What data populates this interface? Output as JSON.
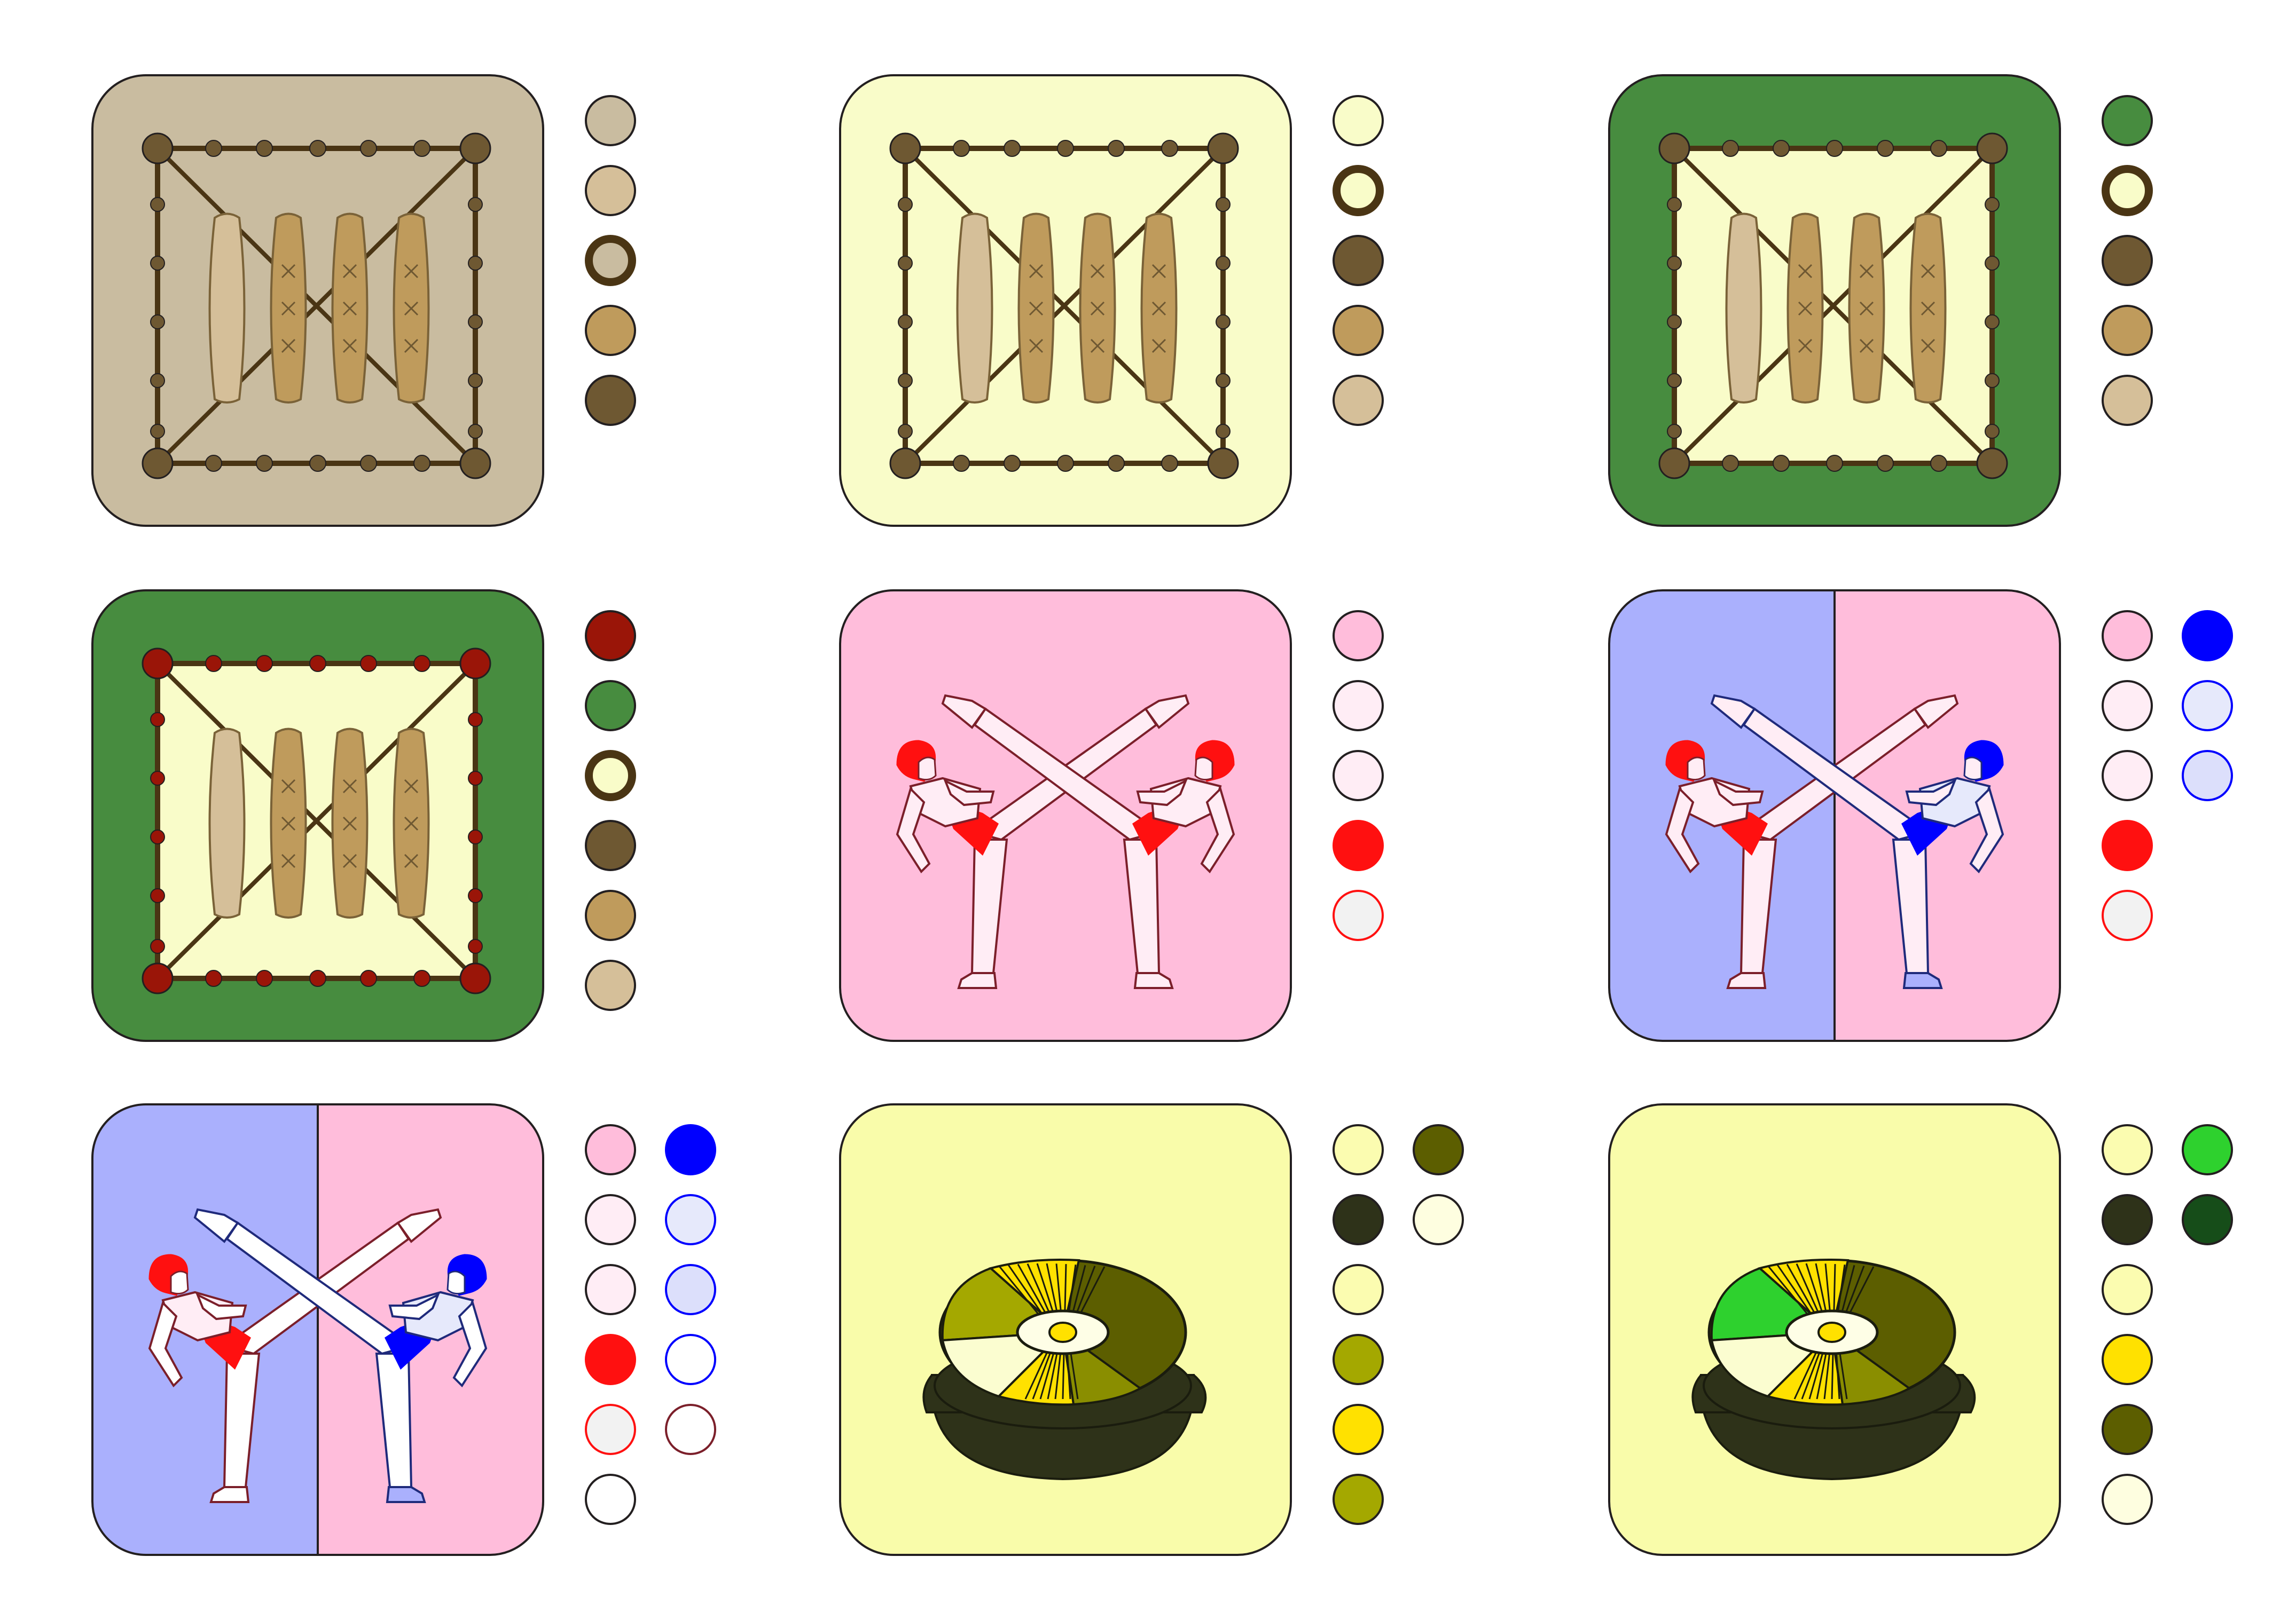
{
  "icons": [
    {
      "name": "mat-board-icon",
      "bg": "#c9bca0",
      "panel": "#c9bca0",
      "frame": "#4a3514",
      "node": "#6e5832",
      "pad_light": "#d5bf99",
      "pad": "#bf9b5c",
      "pad_x": "#6e5832",
      "palette": [
        [
          {
            "color": "#c9bca0"
          },
          {
            "color": "#d5bf99"
          },
          {
            "color": "#c9bca0",
            "ring": "#4a3514"
          },
          {
            "color": "#bf9b5c"
          },
          {
            "color": "#6e5832"
          }
        ]
      ]
    },
    {
      "name": "mat-board-icon",
      "bg": "#f9fcc9",
      "panel": "#f9fcc9",
      "frame": "#4a3514",
      "node": "#6e5832",
      "pad_light": "#d5bf99",
      "pad": "#bf9b5c",
      "pad_x": "#6e5832",
      "palette": [
        [
          {
            "color": "#f9fcc9"
          },
          {
            "color": "#f9fcc9",
            "ring": "#4a3514"
          },
          {
            "color": "#6e5832"
          },
          {
            "color": "#bf9b5c"
          },
          {
            "color": "#d5bf99"
          }
        ]
      ]
    },
    {
      "name": "mat-board-icon",
      "bg": "#478c3f",
      "panel": "#f9fcc9",
      "frame": "#4a3514",
      "node": "#6e5832",
      "pad_light": "#d5bf99",
      "pad": "#bf9b5c",
      "pad_x": "#6e5832",
      "palette": [
        [
          {
            "color": "#478c3f"
          },
          {
            "color": "#f9fcc9",
            "ring": "#4a3514"
          },
          {
            "color": "#6e5832"
          },
          {
            "color": "#bf9b5c"
          },
          {
            "color": "#d5bf99"
          }
        ]
      ]
    },
    {
      "name": "mat-board-icon",
      "bg": "#478c3f",
      "panel": "#f9fcc9",
      "frame": "#4a3514",
      "node": "#9a1508",
      "pad_light": "#d5bf99",
      "pad": "#bf9b5c",
      "pad_x": "#6e5832",
      "palette": [
        [
          {
            "color": "#9a1508"
          },
          {
            "color": "#478c3f"
          },
          {
            "color": "#f9fcc9",
            "ring": "#4a3514"
          },
          {
            "color": "#6e5832"
          },
          {
            "color": "#bf9b5c"
          },
          {
            "color": "#d5bf99"
          }
        ]
      ]
    },
    {
      "name": "kick-fighters-icon",
      "bg_left": "#ffbddb",
      "bg_right": "#ffbddb",
      "split": false,
      "left_accent": "#ff1010",
      "right_accent": "#ff1010",
      "skin": "#ffedf5",
      "left_shirt": "#ffedf5",
      "right_shirt": "#ffedf5",
      "left_foot": "#ffedf5",
      "right_foot": "#ffedf5",
      "left_outline": "#7b1f2a",
      "right_outline": "#7b1f2a",
      "palette": [
        [
          {
            "color": "#ffbddb"
          },
          {
            "color": "#ffedf5"
          },
          {
            "color": "#ffedf5"
          },
          {
            "color": "#ff1010",
            "stroke": "#ff1010"
          },
          {
            "color": "#f2f2f2",
            "stroke": "#ff1010"
          }
        ]
      ]
    },
    {
      "name": "kick-fighters-icon",
      "bg_left": "#aab0fd",
      "bg_right": "#ffbddb",
      "split": true,
      "left_accent": "#ff1010",
      "right_accent": "#0000ff",
      "skin": "#ffedf5",
      "left_shirt": "#ffedf5",
      "right_shirt": "#e6e9fb",
      "left_foot": "#ffedf5",
      "right_foot": "#aab0fd",
      "left_outline": "#7b1f2a",
      "right_outline": "#1f2a7b",
      "palette": [
        [
          {
            "color": "#ffbddb"
          },
          {
            "color": "#ffedf5"
          },
          {
            "color": "#ffedf5"
          },
          {
            "color": "#ff1010",
            "stroke": "#ff1010"
          },
          {
            "color": "#f2f2f2",
            "stroke": "#ff1010"
          }
        ],
        [
          {
            "color": "#0000ff",
            "stroke": "#0000ff"
          },
          {
            "color": "#e6e9fb",
            "stroke": "#0000ff"
          },
          {
            "color": "#dcdffb",
            "stroke": "#0000ff"
          }
        ]
      ]
    },
    {
      "name": "kick-fighters-icon",
      "bg_left": "#aab0fd",
      "bg_right": "#ffbddb",
      "split": true,
      "left_accent": "#ff1010",
      "right_accent": "#0000ff",
      "skin": "#ffffff",
      "left_shirt": "#ffedf5",
      "right_shirt": "#e6e9fb",
      "left_foot": "#ffffff",
      "right_foot": "#aab0fd",
      "left_outline": "#7b1f2a",
      "right_outline": "#1f2a7b",
      "palette": [
        [
          {
            "color": "#ffbddb"
          },
          {
            "color": "#ffedf5"
          },
          {
            "color": "#ffedf5"
          },
          {
            "color": "#ff1010",
            "stroke": "#ff1010"
          },
          {
            "color": "#f2f2f2",
            "stroke": "#ff1010"
          },
          {
            "color": "#ffffff"
          }
        ],
        [
          {
            "color": "#0000ff",
            "stroke": "#0000ff"
          },
          {
            "color": "#e6e9fb",
            "stroke": "#0000ff"
          },
          {
            "color": "#dcdffb",
            "stroke": "#0000ff"
          },
          {
            "color": "#ffffff",
            "stroke": "#0000ff"
          },
          {
            "color": "#ffffff",
            "stroke": "#7b1f2a"
          }
        ]
      ]
    },
    {
      "name": "bibimbap-bowl-icon",
      "bg": "#f9fcaa",
      "bowl": "#2e3219",
      "rim": "#2e3219",
      "seg_a": "#5c5e00",
      "seg_b": "#a4a800",
      "seg_c": "#8a8e00",
      "seg_d": "#fbfdd0",
      "seg_e": "#ffe100",
      "egg": "#fefee6",
      "yolk": "#ffe100",
      "palette": [
        [
          {
            "color": "#fbfcb0"
          },
          {
            "color": "#2e3219"
          },
          {
            "color": "#fbfcb0"
          },
          {
            "color": "#a4a800"
          },
          {
            "color": "#ffe100"
          },
          {
            "color": "#a4a800"
          }
        ],
        [
          {
            "color": "#5c5e00"
          },
          {
            "color": "#fefee0"
          }
        ]
      ]
    },
    {
      "name": "bibimbap-bowl-icon",
      "bg": "#f9fcaa",
      "bowl": "#2e3219",
      "rim": "#2e3219",
      "seg_a": "#5c5e00",
      "seg_b": "#2ed12e",
      "seg_c": "#8a8e00",
      "seg_d": "#fbfdd0",
      "seg_e": "#ffe100",
      "egg": "#fefee6",
      "yolk": "#ffe100",
      "palette": [
        [
          {
            "color": "#fbfcb0"
          },
          {
            "color": "#2e3219"
          },
          {
            "color": "#fbfcb0"
          },
          {
            "color": "#ffe100"
          },
          {
            "color": "#5c5e00"
          },
          {
            "color": "#fefee0"
          }
        ],
        [
          {
            "color": "#2ed12e"
          },
          {
            "color": "#164d19"
          }
        ]
      ]
    }
  ]
}
